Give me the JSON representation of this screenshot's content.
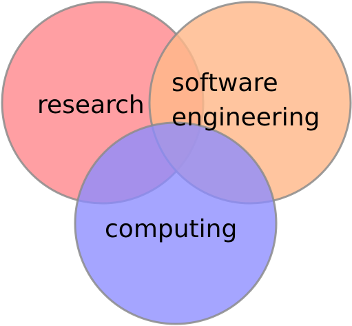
{
  "diagram": {
    "type": "venn",
    "sets": [
      {
        "key": "research",
        "lines": [
          "research"
        ],
        "fill": "#ff8a8f"
      },
      {
        "key": "software-engineering",
        "lines": [
          "software",
          "engineering"
        ],
        "fill": "#ffb88a"
      },
      {
        "key": "computing",
        "lines": [
          "computing"
        ],
        "fill": "#8c8cff"
      }
    ],
    "stroke_color": "#8c8c8c"
  }
}
